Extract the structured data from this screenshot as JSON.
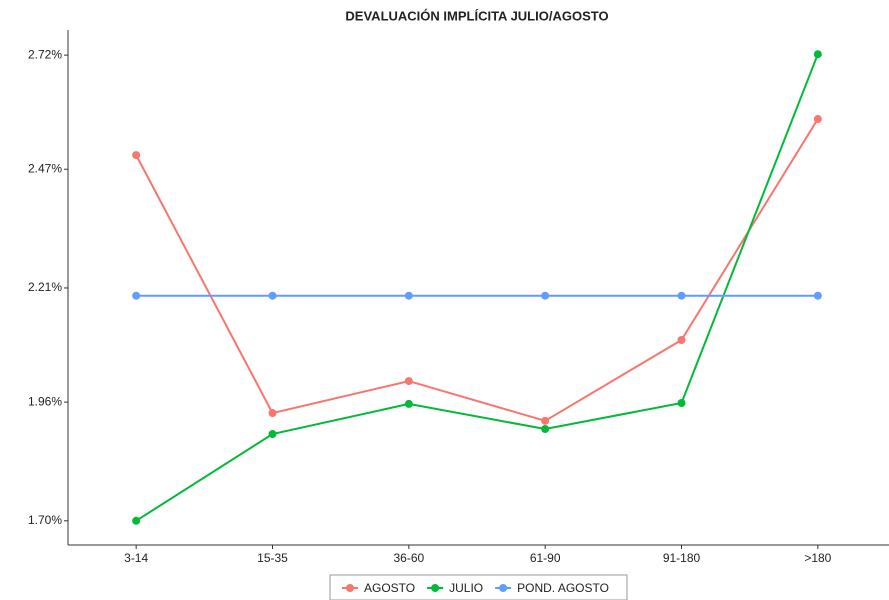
{
  "chart_data": {
    "type": "line",
    "title": "DEVALUACIÓN IMPLÍCITA JULIO/AGOSTO",
    "categories": [
      "3-14",
      "15-35",
      "36-60",
      "61-90",
      "91-180",
      ">180"
    ],
    "series": [
      {
        "name": "AGOSTO",
        "color": "#f8766d",
        "values": [
          2.501,
          1.936,
          2.006,
          1.919,
          2.096,
          2.58
        ]
      },
      {
        "name": "JULIO",
        "color": "#00ba38",
        "values": [
          1.7,
          1.89,
          1.956,
          1.901,
          1.958,
          2.722
        ]
      },
      {
        "name": "POND. AGOSTO",
        "color": "#619cff",
        "values": [
          2.193,
          2.193,
          2.193,
          2.193,
          2.193,
          2.193
        ]
      }
    ],
    "ylim": [
      1.647,
      2.775
    ],
    "yticks": [
      {
        "value": 1.7,
        "label": "1.70%"
      },
      {
        "value": 1.96,
        "label": "1.96%"
      },
      {
        "value": 2.21,
        "label": "2.21%"
      },
      {
        "value": 2.47,
        "label": "2.47%"
      },
      {
        "value": 2.72,
        "label": "2.72%"
      }
    ],
    "legend": "bottom"
  }
}
